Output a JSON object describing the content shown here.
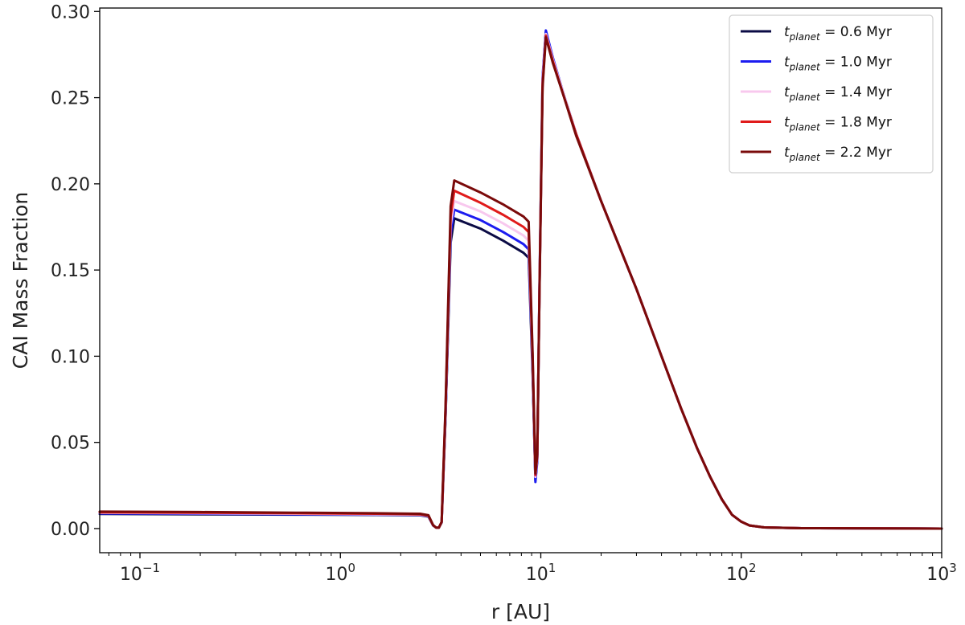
{
  "chart_data": {
    "type": "line",
    "title": "",
    "xlabel": "r [AU]",
    "ylabel": "CAI Mass Fraction",
    "xscale": "log",
    "xlim": [
      0.063,
      1000
    ],
    "ylim": [
      -0.014,
      0.302
    ],
    "grid": false,
    "legend_position": "top-right",
    "yticks": [
      {
        "value": 0.0,
        "label": "0.00"
      },
      {
        "value": 0.05,
        "label": "0.05"
      },
      {
        "value": 0.1,
        "label": "0.10"
      },
      {
        "value": 0.15,
        "label": "0.15"
      },
      {
        "value": 0.2,
        "label": "0.20"
      },
      {
        "value": 0.25,
        "label": "0.25"
      },
      {
        "value": 0.3,
        "label": "0.30"
      }
    ],
    "xticks": [
      {
        "value": 0.1,
        "base": "10",
        "exp": "−1"
      },
      {
        "value": 1,
        "base": "10",
        "exp": "0"
      },
      {
        "value": 10,
        "base": "10",
        "exp": "1"
      },
      {
        "value": 100,
        "base": "10",
        "exp": "2"
      },
      {
        "value": 1000,
        "base": "10",
        "exp": "3"
      }
    ],
    "shared_x": [
      0.063,
      0.2,
      0.6,
      1.5,
      2.5,
      2.75,
      2.9,
      3.0,
      3.1,
      3.2,
      3.35,
      3.55,
      3.7,
      5.0,
      6.5,
      8.2,
      8.7,
      9.1,
      9.4,
      9.6,
      9.85,
      10.2,
      10.6,
      11.5,
      13,
      15,
      20,
      30,
      40,
      50,
      60,
      70,
      80,
      90,
      100,
      110,
      130,
      200,
      1000
    ],
    "series": [
      {
        "label_main": "t",
        "label_sub": "planet",
        "label_rest": " = 0.6 Myr",
        "color": "#0b0b45",
        "values": [
          0.0085,
          0.0083,
          0.0081,
          0.0079,
          0.0077,
          0.0069,
          0.0018,
          0.0006,
          0.0005,
          0.0035,
          0.065,
          0.166,
          0.18,
          0.174,
          0.167,
          0.16,
          0.157,
          0.09,
          0.028,
          0.04,
          0.14,
          0.26,
          0.288,
          0.272,
          0.252,
          0.229,
          0.19,
          0.139,
          0.1,
          0.07,
          0.047,
          0.03,
          0.017,
          0.008,
          0.004,
          0.0018,
          0.0007,
          0.0002,
          0.0
        ]
      },
      {
        "label_main": "t",
        "label_sub": "planet",
        "label_rest": " = 1.0 Myr",
        "color": "#1c1cf0",
        "values": [
          0.0088,
          0.0086,
          0.0083,
          0.0081,
          0.0079,
          0.0071,
          0.0019,
          0.0006,
          0.0005,
          0.0036,
          0.066,
          0.171,
          0.185,
          0.179,
          0.172,
          0.165,
          0.162,
          0.093,
          0.027,
          0.039,
          0.142,
          0.262,
          0.289,
          0.273,
          0.252,
          0.229,
          0.19,
          0.139,
          0.1,
          0.07,
          0.047,
          0.03,
          0.017,
          0.008,
          0.004,
          0.0018,
          0.0007,
          0.0002,
          0.0
        ]
      },
      {
        "label_main": "t",
        "label_sub": "planet",
        "label_rest": " = 1.4 Myr",
        "color": "#f8c8ee",
        "values": [
          0.0091,
          0.0089,
          0.0086,
          0.0083,
          0.0081,
          0.0073,
          0.002,
          0.0006,
          0.0005,
          0.0037,
          0.068,
          0.176,
          0.19,
          0.184,
          0.177,
          0.17,
          0.167,
          0.096,
          0.03,
          0.041,
          0.141,
          0.26,
          0.287,
          0.272,
          0.252,
          0.229,
          0.19,
          0.139,
          0.1,
          0.07,
          0.047,
          0.03,
          0.017,
          0.008,
          0.004,
          0.0018,
          0.0007,
          0.0002,
          0.0
        ]
      },
      {
        "label_main": "t",
        "label_sub": "planet",
        "label_rest": " = 1.8 Myr",
        "color": "#e01b1b",
        "values": [
          0.0094,
          0.0092,
          0.0089,
          0.0086,
          0.0083,
          0.0075,
          0.002,
          0.0006,
          0.0005,
          0.0038,
          0.07,
          0.181,
          0.196,
          0.189,
          0.182,
          0.175,
          0.172,
          0.099,
          0.031,
          0.042,
          0.14,
          0.258,
          0.286,
          0.271,
          0.251,
          0.229,
          0.19,
          0.139,
          0.1,
          0.07,
          0.047,
          0.03,
          0.017,
          0.008,
          0.004,
          0.0018,
          0.0007,
          0.0002,
          0.0
        ]
      },
      {
        "label_main": "t",
        "label_sub": "planet",
        "label_rest": " = 2.2 Myr",
        "color": "#7a0a0a",
        "values": [
          0.0098,
          0.0096,
          0.0092,
          0.0089,
          0.0086,
          0.0077,
          0.0021,
          0.0006,
          0.0005,
          0.0039,
          0.072,
          0.187,
          0.202,
          0.195,
          0.188,
          0.181,
          0.178,
          0.102,
          0.032,
          0.043,
          0.139,
          0.256,
          0.285,
          0.27,
          0.251,
          0.228,
          0.19,
          0.139,
          0.1,
          0.07,
          0.047,
          0.03,
          0.017,
          0.008,
          0.004,
          0.0018,
          0.0007,
          0.0002,
          0.0
        ]
      }
    ]
  }
}
